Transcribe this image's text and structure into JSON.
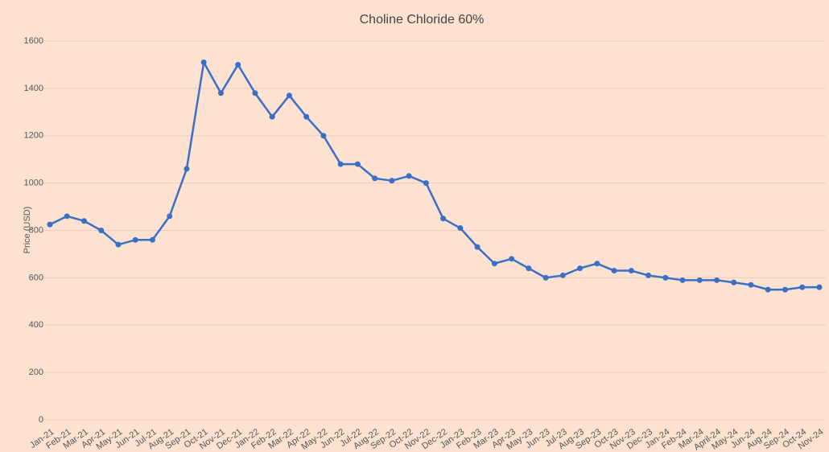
{
  "chart_data": {
    "type": "line",
    "title": "Choline Chloride 60%",
    "y_label": "Price (USD)",
    "categories": [
      "Jan-21",
      "Feb-21",
      "Mar-21",
      "Apr-21",
      "May-21",
      "Jun-21",
      "Jul-21",
      "Aug-21",
      "Sep-21",
      "Oct-21",
      "Nov-21",
      "Dec-21",
      "Jan-22",
      "Feb-22",
      "Mar-22",
      "Apr-22",
      "May-22",
      "Jun-22",
      "Jul-22",
      "Aug-22",
      "Sep-22",
      "Oct-22",
      "Nov-22",
      "Dec-22",
      "Jan-23",
      "Feb-23",
      "Mar-23",
      "Apr-23",
      "May-23",
      "Jun-23",
      "Jul-23",
      "Aug-23",
      "Sep-23",
      "Oct-23",
      "Nov-23",
      "Dec-23",
      "Jan-24",
      "Feb-24",
      "Mar-24",
      "April-24",
      "May-24",
      "Jun-24",
      "Aug-24",
      "Sep-24",
      "Oct-24",
      "Nov-24"
    ],
    "values": [
      825,
      860,
      840,
      800,
      740,
      760,
      760,
      860,
      1060,
      1510,
      1380,
      1500,
      1380,
      1280,
      1370,
      1280,
      1200,
      1080,
      1080,
      1020,
      1010,
      1030,
      1000,
      850,
      810,
      730,
      660,
      680,
      640,
      600,
      610,
      640,
      660,
      630,
      630,
      610,
      600,
      590,
      590,
      590,
      580,
      570,
      550,
      550,
      560,
      560
    ],
    "color": "#3a6fc6",
    "ylim": [
      0,
      1600
    ],
    "yticks": [
      0,
      200,
      400,
      600,
      800,
      1000,
      1200,
      1400,
      1600
    ],
    "grid": true
  }
}
